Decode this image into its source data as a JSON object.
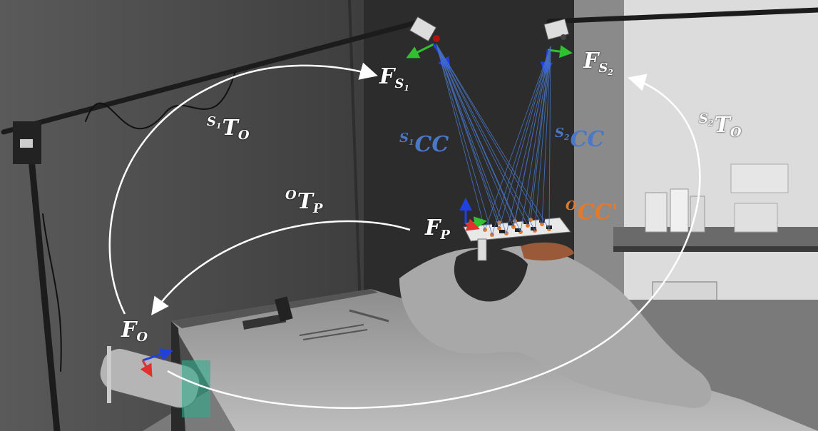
{
  "frames": {
    "fs1": {
      "main": "F",
      "sub": "S",
      "subsub": "1"
    },
    "fs2": {
      "main": "F",
      "sub": "S",
      "subsub": "2"
    },
    "fp": {
      "main": "F",
      "sub": "P"
    },
    "fo": {
      "main": "F",
      "sub": "O"
    }
  },
  "transforms": {
    "s1to": {
      "sup": "S",
      "supsub": "1",
      "main": "T",
      "sub": "O"
    },
    "s2to": {
      "sup": "S",
      "supsub": "2",
      "main": "T",
      "sub": "O"
    },
    "otp": {
      "sup": "O",
      "main": "T",
      "sub": "P"
    }
  },
  "calib": {
    "s1cc": {
      "sup": "S",
      "supsub": "1",
      "main": "CC"
    },
    "s2cc": {
      "sup": "S",
      "supsub": "2",
      "main": "CC"
    },
    "occ": {
      "sup": "O",
      "main": "CC'"
    }
  },
  "colors": {
    "camera_ray": "#4a78c8",
    "calib_orange": "#e07a2e",
    "arrow": "#ffffff",
    "axis_x": "#e03030",
    "axis_y": "#30c030",
    "axis_z": "#2040e0"
  }
}
